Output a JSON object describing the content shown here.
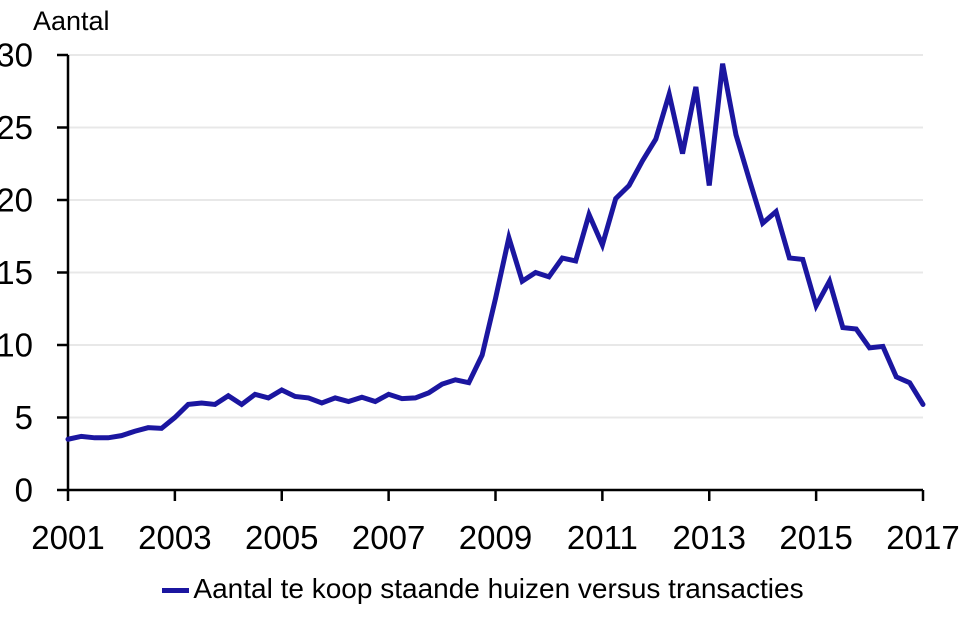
{
  "chart_data": {
    "type": "line",
    "title": "",
    "axis_title": "Aantal",
    "xlabel": "",
    "ylabel": "Aantal",
    "xlim": [
      2001,
      2017
    ],
    "ylim": [
      0,
      30
    ],
    "x_start": 2001,
    "x_step": 0.25,
    "x_ticks": [
      2001,
      2003,
      2005,
      2007,
      2009,
      2011,
      2013,
      2015,
      2017
    ],
    "y_ticks": [
      0,
      5,
      10,
      15,
      20,
      25,
      30
    ],
    "grid": true,
    "legend_position": "bottom",
    "colors": {
      "line": "#1B16A0",
      "grid": "#E8E8E8",
      "axis": "#000000",
      "text": "#000000",
      "background": "#FFFFFF"
    },
    "series": [
      {
        "name": "Aantal te koop staande huizen versus transacties",
        "values": [
          3.5,
          3.7,
          3.6,
          3.6,
          3.75,
          4.05,
          4.3,
          4.25,
          5.0,
          5.9,
          6.0,
          5.9,
          6.5,
          5.9,
          6.6,
          6.35,
          6.9,
          6.45,
          6.35,
          6.0,
          6.35,
          6.1,
          6.4,
          6.1,
          6.6,
          6.3,
          6.35,
          6.7,
          7.3,
          7.6,
          7.4,
          9.3,
          13.2,
          17.4,
          14.4,
          15.0,
          14.7,
          16.0,
          15.8,
          19.0,
          16.9,
          20.1,
          21.0,
          22.7,
          24.2,
          27.3,
          23.2,
          27.8,
          21.0,
          29.4,
          24.5,
          21.4,
          18.4,
          19.2,
          16.0,
          15.9,
          12.7,
          14.4,
          11.2,
          11.1,
          9.8,
          9.9,
          7.8,
          7.4,
          5.9
        ]
      }
    ]
  }
}
